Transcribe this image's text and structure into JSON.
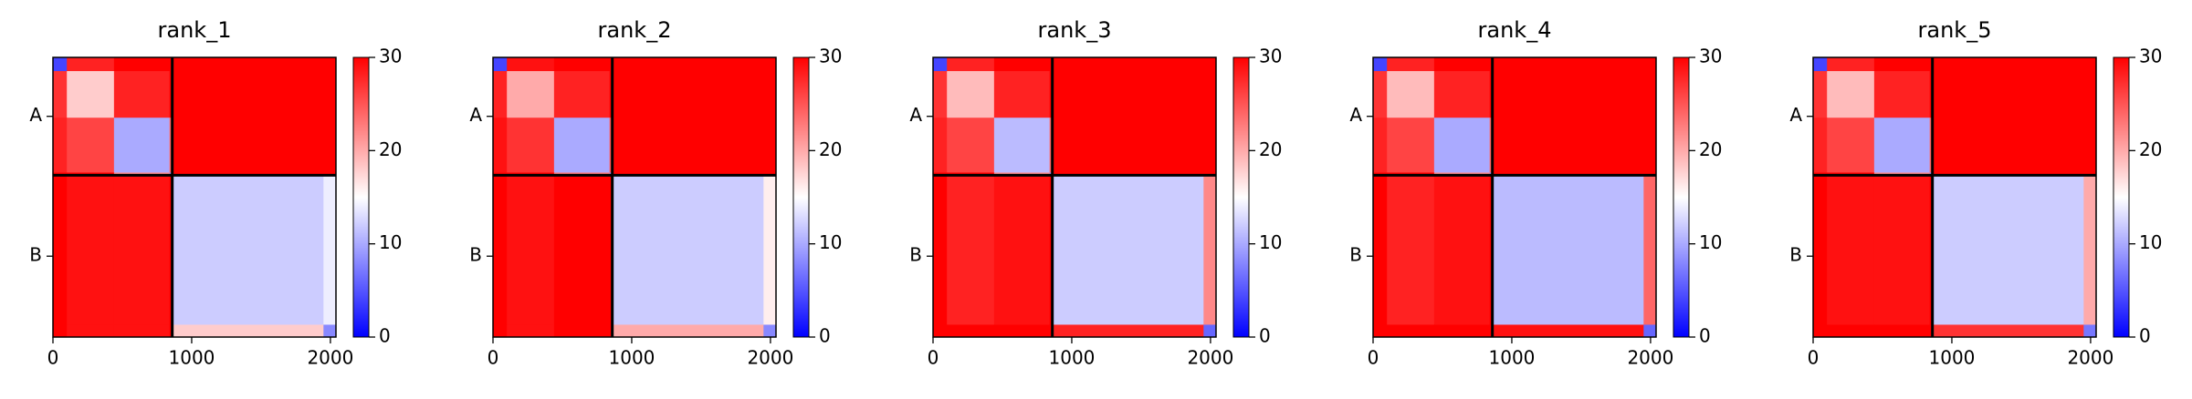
{
  "chart_data": [
    {
      "type": "heatmap",
      "title": "rank_1",
      "bins": [
        0,
        100,
        440,
        840,
        860,
        1950,
        2040
      ],
      "values": [
        [
          4,
          28,
          30,
          30,
          30,
          30
        ],
        [
          27,
          18,
          28,
          30,
          30,
          30
        ],
        [
          28,
          26,
          10,
          24,
          30,
          30
        ],
        [
          30,
          30,
          22,
          8,
          30,
          30
        ],
        [
          30,
          29,
          29,
          30,
          12,
          14
        ],
        [
          30,
          29,
          29,
          30,
          18,
          8
        ]
      ],
      "xlim": [
        0,
        2040
      ],
      "ylim": [
        2040,
        0
      ],
      "xticks": [
        0,
        1000,
        2000
      ],
      "yticks": [
        {
          "value": 430,
          "label": "A"
        },
        {
          "value": 1450,
          "label": "B"
        }
      ],
      "boundaries": [
        860
      ],
      "clim": [
        0,
        30
      ],
      "cticks": [
        0,
        10,
        20,
        30
      ],
      "colormap": [
        "#0000ff",
        "#ffffff",
        "#ff0000"
      ]
    },
    {
      "type": "heatmap",
      "title": "rank_2",
      "bins": [
        0,
        100,
        440,
        840,
        860,
        1950,
        2040
      ],
      "values": [
        [
          4,
          29,
          30,
          30,
          30,
          30
        ],
        [
          28,
          20,
          28,
          30,
          30,
          30
        ],
        [
          29,
          27,
          10,
          25,
          30,
          30
        ],
        [
          30,
          30,
          23,
          8,
          30,
          30
        ],
        [
          30,
          29,
          30,
          30,
          12,
          16
        ],
        [
          30,
          29,
          30,
          30,
          20,
          8
        ]
      ],
      "xlim": [
        0,
        2040
      ],
      "ylim": [
        2040,
        0
      ],
      "xticks": [
        0,
        1000,
        2000
      ],
      "yticks": [
        {
          "value": 430,
          "label": "A"
        },
        {
          "value": 1450,
          "label": "B"
        }
      ],
      "boundaries": [
        860
      ],
      "clim": [
        0,
        30
      ],
      "cticks": [
        0,
        10,
        20,
        30
      ],
      "colormap": [
        "#0000ff",
        "#ffffff",
        "#ff0000"
      ]
    },
    {
      "type": "heatmap",
      "title": "rank_3",
      "bins": [
        0,
        100,
        440,
        840,
        860,
        1950,
        2040
      ],
      "values": [
        [
          4,
          28,
          30,
          30,
          30,
          30
        ],
        [
          27,
          19,
          28,
          30,
          30,
          30
        ],
        [
          28,
          26,
          11,
          24,
          30,
          30
        ],
        [
          30,
          30,
          22,
          8,
          30,
          30
        ],
        [
          30,
          28,
          29,
          30,
          12,
          22
        ],
        [
          30,
          30,
          30,
          30,
          28,
          6
        ]
      ],
      "xlim": [
        0,
        2040
      ],
      "ylim": [
        2040,
        0
      ],
      "xticks": [
        0,
        1000,
        2000
      ],
      "yticks": [
        {
          "value": 430,
          "label": "A"
        },
        {
          "value": 1450,
          "label": "B"
        }
      ],
      "boundaries": [
        860
      ],
      "clim": [
        0,
        30
      ],
      "cticks": [
        0,
        10,
        20,
        30
      ],
      "colormap": [
        "#0000ff",
        "#ffffff",
        "#ff0000"
      ]
    },
    {
      "type": "heatmap",
      "title": "rank_4",
      "bins": [
        0,
        100,
        440,
        840,
        860,
        1950,
        2040
      ],
      "values": [
        [
          4,
          28,
          30,
          30,
          30,
          30
        ],
        [
          27,
          19,
          28,
          30,
          30,
          30
        ],
        [
          28,
          26,
          10,
          24,
          30,
          30
        ],
        [
          30,
          30,
          22,
          8,
          30,
          30
        ],
        [
          30,
          28,
          29,
          30,
          11,
          24
        ],
        [
          30,
          30,
          30,
          30,
          29,
          6
        ]
      ],
      "xlim": [
        0,
        2040
      ],
      "ylim": [
        2040,
        0
      ],
      "xticks": [
        0,
        1000,
        2000
      ],
      "yticks": [
        {
          "value": 430,
          "label": "A"
        },
        {
          "value": 1450,
          "label": "B"
        }
      ],
      "boundaries": [
        860
      ],
      "clim": [
        0,
        30
      ],
      "cticks": [
        0,
        10,
        20,
        30
      ],
      "colormap": [
        "#0000ff",
        "#ffffff",
        "#ff0000"
      ]
    },
    {
      "type": "heatmap",
      "title": "rank_5",
      "bins": [
        0,
        100,
        440,
        840,
        860,
        1950,
        2040
      ],
      "values": [
        [
          4,
          28,
          30,
          30,
          30,
          30
        ],
        [
          27,
          19,
          28,
          30,
          30,
          30
        ],
        [
          28,
          26,
          10,
          24,
          30,
          30
        ],
        [
          30,
          30,
          22,
          8,
          30,
          30
        ],
        [
          30,
          29,
          29,
          30,
          12,
          20
        ],
        [
          30,
          30,
          30,
          30,
          27,
          7
        ]
      ],
      "xlim": [
        0,
        2040
      ],
      "ylim": [
        2040,
        0
      ],
      "xticks": [
        0,
        1000,
        2000
      ],
      "yticks": [
        {
          "value": 430,
          "label": "A"
        },
        {
          "value": 1450,
          "label": "B"
        }
      ],
      "boundaries": [
        860
      ],
      "clim": [
        0,
        30
      ],
      "cticks": [
        0,
        10,
        20,
        30
      ],
      "colormap": [
        "#0000ff",
        "#ffffff",
        "#ff0000"
      ]
    }
  ]
}
